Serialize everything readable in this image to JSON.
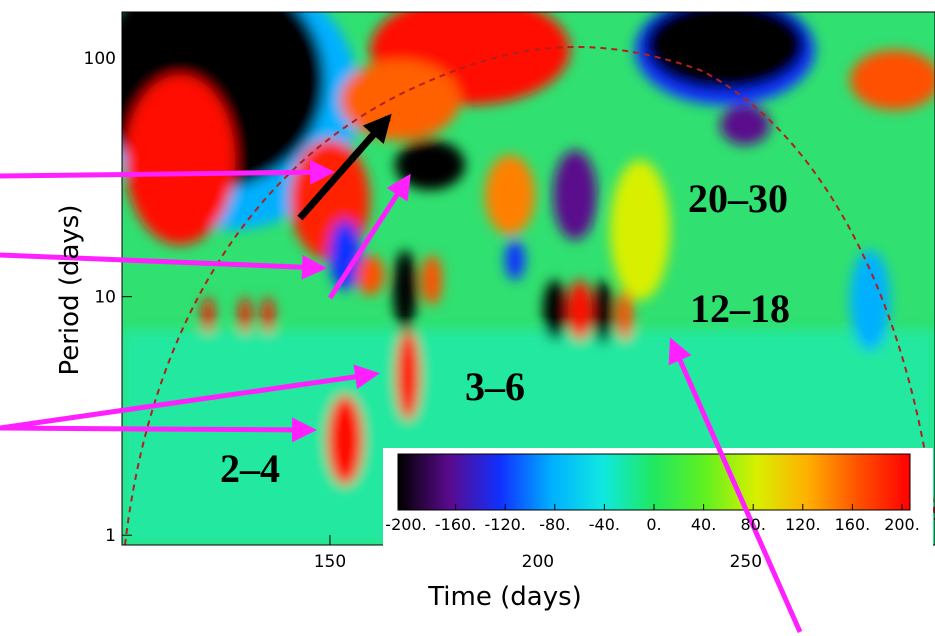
{
  "chart_data": {
    "type": "heatmap",
    "xlabel": "Time (days)",
    "ylabel": "Period (days)",
    "xlim": [
      100,
      295
    ],
    "xticks": [
      150,
      200,
      250
    ],
    "ylim": [
      0.91,
      156
    ],
    "yticks": [
      1,
      10,
      100
    ],
    "ylog": true,
    "colorbar": {
      "lim": [
        -200,
        200
      ],
      "ticks": [
        {
          "value": -200,
          "label": "-200."
        },
        {
          "value": -160,
          "label": "-160."
        },
        {
          "value": -120,
          "label": "-120."
        },
        {
          "value": -80,
          "label": "-80."
        },
        {
          "value": -40,
          "label": "-40."
        },
        {
          "value": 0,
          "label": "0."
        },
        {
          "value": 40,
          "label": "40."
        },
        {
          "value": 80,
          "label": "80."
        },
        {
          "value": 120,
          "label": "120."
        },
        {
          "value": 160,
          "label": "160."
        },
        {
          "value": 200,
          "label": "200."
        }
      ],
      "colormap": [
        "#000000",
        "#5a0a8c",
        "#1030ff",
        "#00b0ff",
        "#10e8e0",
        "#20e860",
        "#60f020",
        "#d8f000",
        "#ffb000",
        "#ff5000",
        "#ff0000"
      ]
    },
    "annotations": [
      "20–30",
      "12–18",
      "3–6",
      "2–4"
    ]
  }
}
